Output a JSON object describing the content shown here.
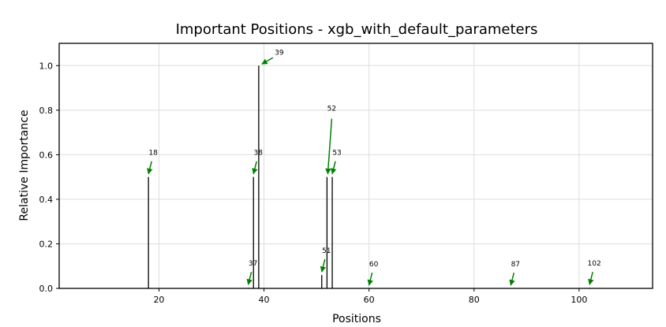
{
  "chart_data": {
    "type": "bar",
    "title": "Important Positions - xgb_with_default_parameters",
    "xlabel": "Positions",
    "ylabel": "Relative Importance",
    "xlim": [
      1,
      114
    ],
    "ylim": [
      0,
      1.1
    ],
    "xticks": [
      20,
      40,
      60,
      80,
      100
    ],
    "yticks": [
      0.0,
      0.2,
      0.4,
      0.6,
      0.8,
      1.0
    ],
    "xtick_labels": [
      "20",
      "40",
      "60",
      "80",
      "100"
    ],
    "ytick_labels": [
      "0.0",
      "0.2",
      "0.4",
      "0.6",
      "0.8",
      "1.0"
    ],
    "grid": true,
    "bar_color": "#000000",
    "annotation_color": "#008000",
    "points": [
      {
        "x": 18,
        "y": 0.5
      },
      {
        "x": 37,
        "y": 0.003
      },
      {
        "x": 38,
        "y": 0.5
      },
      {
        "x": 39,
        "y": 1.0
      },
      {
        "x": 51,
        "y": 0.06
      },
      {
        "x": 52,
        "y": 0.5
      },
      {
        "x": 53,
        "y": 0.5
      },
      {
        "x": 60,
        "y": 0.0
      },
      {
        "x": 87,
        "y": 0.0
      },
      {
        "x": 102,
        "y": 0.003
      }
    ],
    "annotations": [
      {
        "label": "18",
        "x": 18,
        "y": 0.5
      },
      {
        "label": "37",
        "x": 37,
        "y": 0.003
      },
      {
        "label": "38",
        "x": 38,
        "y": 0.5
      },
      {
        "label": "39",
        "x": 39,
        "y": 1.0
      },
      {
        "label": "51",
        "x": 51,
        "y": 0.06
      },
      {
        "label": "52",
        "x": 52,
        "y": 0.5
      },
      {
        "label": "53",
        "x": 53,
        "y": 0.5
      },
      {
        "label": "60",
        "x": 60,
        "y": 0.0
      },
      {
        "label": "87",
        "x": 87,
        "y": 0.0
      },
      {
        "label": "102",
        "x": 102,
        "y": 0.003
      }
    ]
  }
}
